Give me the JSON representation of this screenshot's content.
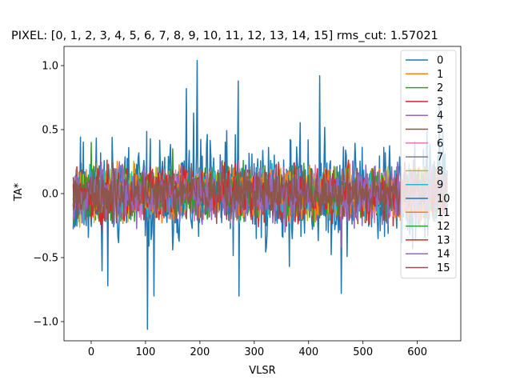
{
  "chart_data": {
    "type": "line",
    "title": "PIXEL: [0, 1, 2, 3, 4, 5, 6, 7, 8, 9, 10, 11, 12, 13, 14, 15]   rms_cut: 1.57021",
    "xlabel": "VLSR",
    "ylabel": "TA*",
    "xlim": [
      -50,
      680
    ],
    "ylim": [
      -1.15,
      1.15
    ],
    "x_range": [
      -33,
      655
    ],
    "xticks": [
      0,
      100,
      200,
      300,
      400,
      500,
      600
    ],
    "xtick_labels": [
      "0",
      "100",
      "200",
      "300",
      "400",
      "500",
      "600"
    ],
    "yticks": [
      -1.0,
      -0.5,
      0.0,
      0.5,
      1.0
    ],
    "ytick_labels": [
      "−1.0",
      "−0.5",
      "0.0",
      "0.5",
      "1.0"
    ],
    "grid": false,
    "legend_position": "upper right",
    "series": [
      {
        "name": "0",
        "color": "#1f77b4",
        "amplitude": 0.22,
        "seed": 11,
        "extremes": [
          [
            195,
            1.04
          ],
          [
            103,
            -1.06
          ],
          [
            420,
            0.92
          ],
          [
            270,
            0.88
          ],
          [
            175,
            0.82
          ],
          [
            115,
            -0.8
          ],
          [
            272,
            -0.8
          ],
          [
            460,
            -0.78
          ],
          [
            640,
            0.72
          ],
          [
            30,
            -0.72
          ]
        ]
      },
      {
        "name": "1",
        "color": "#ff7f0e",
        "amplitude": 0.09,
        "seed": 23,
        "extremes": []
      },
      {
        "name": "2",
        "color": "#2ca02c",
        "amplitude": 0.1,
        "seed": 37,
        "extremes": [
          [
            0,
            0.4
          ],
          [
            150,
            0.35
          ]
        ]
      },
      {
        "name": "3",
        "color": "#d62728",
        "amplitude": 0.1,
        "seed": 41,
        "extremes": [
          [
            20,
            -0.3
          ]
        ]
      },
      {
        "name": "4",
        "color": "#9467bd",
        "amplitude": 0.1,
        "seed": 53,
        "extremes": [
          [
            460,
            -0.42
          ]
        ]
      },
      {
        "name": "5",
        "color": "#8c564b",
        "amplitude": 0.09,
        "seed": 67,
        "extremes": []
      },
      {
        "name": "6",
        "color": "#e377c2",
        "amplitude": 0.09,
        "seed": 71,
        "extremes": []
      },
      {
        "name": "7",
        "color": "#7f7f7f",
        "amplitude": 0.09,
        "seed": 83,
        "extremes": []
      },
      {
        "name": "8",
        "color": "#bcbd22",
        "amplitude": 0.09,
        "seed": 97,
        "extremes": []
      },
      {
        "name": "9",
        "color": "#17becf",
        "amplitude": 0.09,
        "seed": 101,
        "extremes": []
      },
      {
        "name": "10",
        "color": "#1f77b4",
        "amplitude": 0.1,
        "seed": 113,
        "extremes": []
      },
      {
        "name": "11",
        "color": "#ff7f0e",
        "amplitude": 0.09,
        "seed": 127,
        "extremes": []
      },
      {
        "name": "12",
        "color": "#2ca02c",
        "amplitude": 0.09,
        "seed": 131,
        "extremes": []
      },
      {
        "name": "13",
        "color": "#d62728",
        "amplitude": 0.09,
        "seed": 149,
        "extremes": []
      },
      {
        "name": "14",
        "color": "#9467bd",
        "amplitude": 0.1,
        "seed": 157,
        "extremes": []
      },
      {
        "name": "15",
        "color": "#8c564b",
        "amplitude": 0.09,
        "seed": 163,
        "extremes": []
      }
    ]
  }
}
